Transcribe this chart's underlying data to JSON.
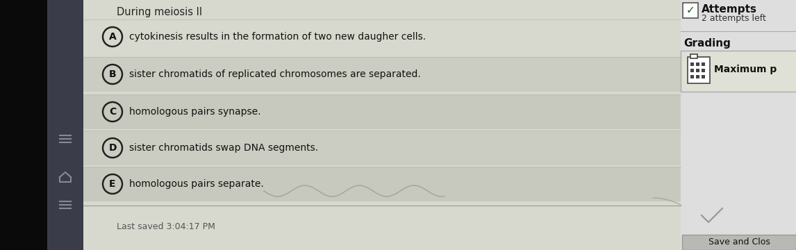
{
  "title": "During meiosis II",
  "bg_color": "#c8cabe",
  "main_bg": "#d8d9ce",
  "option_bg_light": "#d4d5ca",
  "option_bg_dark": "#c8c9be",
  "right_bg": "#dddedd",
  "right_section_bg": "#e8e9e4",
  "left_black": "#0a0a0a",
  "left_strip": "#3a3c4a",
  "options": [
    {
      "label": "A",
      "text": "cytokinesis results in the formation of two new daugher cells."
    },
    {
      "label": "B",
      "text": "sister chromatids of replicated chromosomes are separated."
    },
    {
      "label": "C",
      "text": "homologous pairs synapse."
    },
    {
      "label": "D",
      "text": "sister chromatids swap DNA segments."
    },
    {
      "label": "E",
      "text": "homologous pairs separate."
    }
  ],
  "attempts_text": "Attempts",
  "attempts_sub": "2 attempts left",
  "grading_text": "Grading",
  "max_text": "Maximum p",
  "last_saved": "Last saved 3:04:17 PM",
  "save_btn": "Save and Clos",
  "circle_color": "#222222",
  "circle_fill": "#d4d5ca",
  "text_color": "#111111",
  "title_color": "#222222",
  "separator_color": "#aaaaaa",
  "check_color": "#1a5a1a",
  "sidebar_icon_color": "#888899"
}
